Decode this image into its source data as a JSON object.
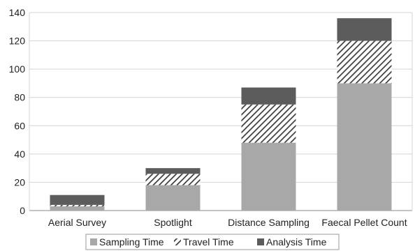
{
  "chart_data": {
    "type": "bar",
    "stacked": true,
    "categories": [
      "Aerial Survey",
      "Spotlight",
      "Distance Sampling",
      "Faecal Pellet Count"
    ],
    "series": [
      {
        "name": "Sampling Time",
        "values": [
          3,
          18,
          48,
          90
        ],
        "color": "#a8a8a8",
        "pattern": "solid"
      },
      {
        "name": "Travel Time",
        "values": [
          1,
          8,
          27,
          30
        ],
        "color": "#3a3a3a",
        "pattern": "hatch"
      },
      {
        "name": "Analysis Time",
        "values": [
          7,
          4,
          12,
          16
        ],
        "color": "#5c5c5c",
        "pattern": "solid"
      }
    ],
    "yticks": [
      0,
      20,
      40,
      60,
      80,
      100,
      120,
      140
    ],
    "ylim": [
      0,
      140
    ],
    "grid": true,
    "legend_position": "bottom"
  }
}
